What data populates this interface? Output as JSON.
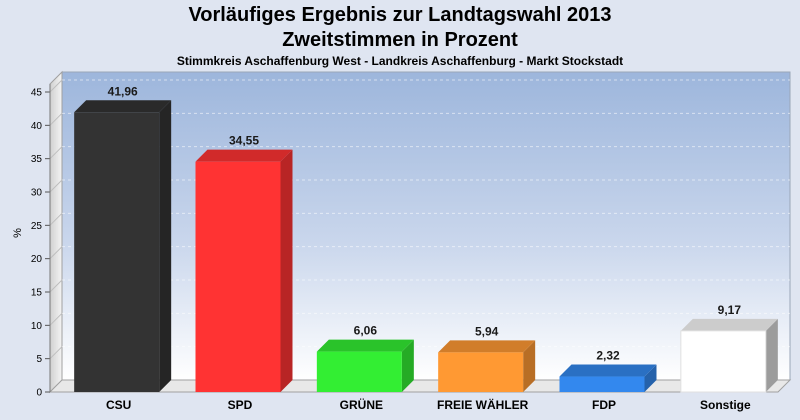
{
  "title": "Vorläufiges Ergebnis zur Landtagswahl 2013",
  "subtitle": "Zweitstimmen in Prozent",
  "subsubtitle": "Stimmkreis Aschaffenburg West - Landkreis Aschaffenburg - Markt Stockstadt",
  "chart_data": {
    "type": "bar",
    "title": "Vorläufiges Ergebnis zur Landtagswahl 2013",
    "ylabel": "%",
    "xlabel": "",
    "ylim": [
      0,
      48
    ],
    "yticks": [
      0,
      5,
      10,
      15,
      20,
      25,
      30,
      35,
      40,
      45
    ],
    "grid": true,
    "categories": [
      "CSU",
      "SPD",
      "GRÜNE",
      "FREIE WÄHLER",
      "FDP",
      "Sonstige"
    ],
    "values": [
      41.96,
      34.55,
      6.06,
      5.94,
      2.32,
      9.17
    ],
    "labels": [
      "41,96",
      "34,55",
      "6,06",
      "5,94",
      "2,32",
      "9,17"
    ],
    "colors": [
      "#333333",
      "#ff3333",
      "#33ee33",
      "#ff9933",
      "#3388ee",
      "#ffffff"
    ]
  }
}
